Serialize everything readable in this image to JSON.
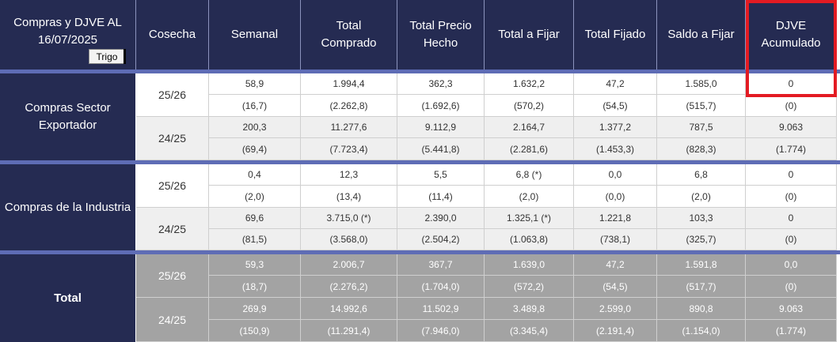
{
  "header": {
    "title": "Compras y DJVE AL 16/07/2025",
    "grain_select": "Trigo",
    "columns": [
      "Cosecha",
      "Semanal",
      "Total Comprado",
      "Total Precio Hecho",
      "Total a Fijar",
      "Total Fijado",
      "Saldo a Fijar",
      "DJVE Acumulado"
    ]
  },
  "groups": [
    {
      "label": "Compras Sector Exportador",
      "rows": [
        {
          "cosecha": "25/26",
          "values": [
            "58,9",
            "1.994,4",
            "362,3",
            "1.632,2",
            "47,2",
            "1.585,0",
            "0"
          ],
          "changes": [
            "(16,7)",
            "(2.262,8)",
            "(1.692,6)",
            "(570,2)",
            "(54,5)",
            "(515,7)",
            "(0)"
          ]
        },
        {
          "cosecha": "24/25",
          "values": [
            "200,3",
            "11.277,6",
            "9.112,9",
            "2.164,7",
            "1.377,2",
            "787,5",
            "9.063"
          ],
          "changes": [
            "(69,4)",
            "(7.723,4)",
            "(5.441,8)",
            "(2.281,6)",
            "(1.453,3)",
            "(828,3)",
            "(1.774)"
          ]
        }
      ]
    },
    {
      "label": "Compras de la Industria",
      "rows": [
        {
          "cosecha": "25/26",
          "values": [
            "0,4",
            "12,3",
            "5,5",
            "6,8 (*)",
            "0,0",
            "6,8",
            "0"
          ],
          "changes": [
            "(2,0)",
            "(13,4)",
            "(11,4)",
            "(2,0)",
            "(0,0)",
            "(2,0)",
            "(0)"
          ]
        },
        {
          "cosecha": "24/25",
          "values": [
            "69,6",
            "3.715,0 (*)",
            "2.390,0",
            "1.325,1 (*)",
            "1.221,8",
            "103,3",
            "0"
          ],
          "changes": [
            "(81,5)",
            "(3.568,0)",
            "(2.504,2)",
            "(1.063,8)",
            "(738,1)",
            "(325,7)",
            "(0)"
          ]
        }
      ]
    },
    {
      "label": "Total",
      "rows": [
        {
          "cosecha": "25/26",
          "values": [
            "59,3",
            "2.006,7",
            "367,7",
            "1.639,0",
            "47,2",
            "1.591,8",
            "0,0"
          ],
          "changes": [
            "(18,7)",
            "(2.276,2)",
            "(1.704,0)",
            "(572,2)",
            "(54,5)",
            "(517,7)",
            "(0)"
          ]
        },
        {
          "cosecha": "24/25",
          "values": [
            "269,9",
            "14.992,6",
            "11.502,9",
            "3.489,8",
            "2.599,0",
            "890,8",
            "9.063"
          ],
          "changes": [
            "(150,9)",
            "(11.291,4)",
            "(7.946,0)",
            "(3.345,4)",
            "(2.191,4)",
            "(1.154,0)",
            "(1.774)"
          ]
        }
      ]
    }
  ],
  "colors": {
    "header_bg": "#252b52",
    "separator": "#5e6cb5",
    "highlight": "#e31b23",
    "total_bg": "#a3a3a3",
    "alt_row_bg": "#efefef"
  }
}
